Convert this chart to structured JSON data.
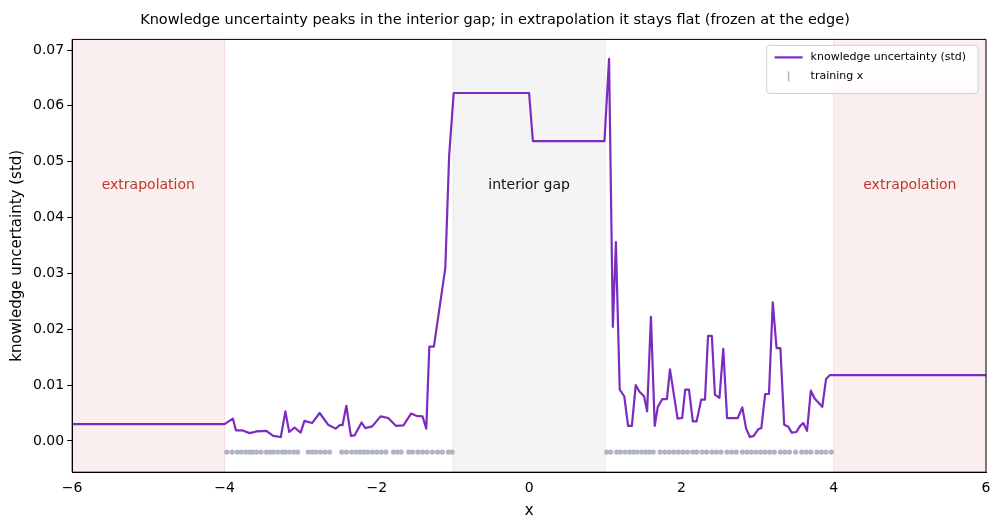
{
  "chart_data": {
    "type": "line",
    "title": "Knowledge uncertainty peaks in the interior gap; in extrapolation it stays flat (frozen at the edge)",
    "xlabel": "x",
    "ylabel": "knowledge uncertainty (std)",
    "xlim": [
      -6,
      6
    ],
    "xticks": [
      {
        "value": -6,
        "label": "−6"
      },
      {
        "value": -4,
        "label": "−4"
      },
      {
        "value": -2,
        "label": "−2"
      },
      0,
      2,
      4,
      6
    ],
    "ylim": [
      -0.0056,
      0.0719
    ],
    "yticks": [
      {
        "value": 0,
        "label": "0.00"
      },
      {
        "value": 0.01,
        "label": "0.01"
      },
      {
        "value": 0.02,
        "label": "0.02"
      },
      {
        "value": 0.03,
        "label": "0.03"
      },
      {
        "value": 0.04,
        "label": "0.04"
      },
      {
        "value": 0.05,
        "label": "0.05"
      },
      {
        "value": 0.06,
        "label": "0.06"
      },
      {
        "value": 0.07,
        "label": "0.07"
      }
    ],
    "grid": false,
    "legend": "top right",
    "bands": [
      {
        "axis": "x",
        "from": -6,
        "to": -4,
        "label": "extrapolation",
        "color": "#c0392b"
      },
      {
        "axis": "x",
        "from": -1,
        "to": 1,
        "label": "interior gap",
        "color": "#777777"
      },
      {
        "axis": "x",
        "from": 4,
        "to": 6,
        "label": "extrapolation",
        "color": "#c0392b"
      }
    ],
    "series": [
      {
        "name": "knowledge uncertainty (std)",
        "color": "#7b2cbf",
        "marker": "none",
        "line_style": "solid",
        "x": [
          -6,
          -4,
          -3.89,
          -3.85,
          -3.77,
          -3.67,
          -3.58,
          -3.45,
          -3.36,
          -3.26,
          -3.2,
          -3.15,
          -3.08,
          -3.0,
          -2.95,
          -2.85,
          -2.75,
          -2.64,
          -2.54,
          -2.48,
          -2.45,
          -2.4,
          -2.34,
          -2.29,
          -2.2,
          -2.15,
          -2.06,
          -1.95,
          -1.85,
          -1.75,
          -1.65,
          -1.55,
          -1.48,
          -1.4,
          -1.35,
          -1.31,
          -1.25,
          -1.1,
          -1.05,
          -0.99,
          0,
          0.05,
          0.99,
          1.05,
          1.1,
          1.14,
          1.19,
          1.25,
          1.3,
          1.35,
          1.4,
          1.45,
          1.51,
          1.55,
          1.6,
          1.65,
          1.69,
          1.75,
          1.81,
          1.85,
          1.95,
          2.01,
          2.05,
          2.1,
          2.15,
          2.2,
          2.26,
          2.31,
          2.35,
          2.4,
          2.44,
          2.5,
          2.55,
          2.6,
          2.74,
          2.8,
          2.85,
          2.9,
          2.95,
          3.01,
          3.05,
          3.1,
          3.15,
          3.2,
          3.25,
          3.3,
          3.35,
          3.4,
          3.45,
          3.51,
          3.56,
          3.6,
          3.65,
          3.7,
          3.75,
          3.85,
          3.9,
          3.95,
          6
        ],
        "values": [
          0.003,
          0.003,
          0.004,
          0.0019,
          0.0019,
          0.0014,
          0.0017,
          0.0018,
          0.0009,
          0.0007,
          0.0053,
          0.0016,
          0.0024,
          0.0015,
          0.0036,
          0.0032,
          0.005,
          0.0029,
          0.0022,
          0.0029,
          0.0028,
          0.0063,
          0.0009,
          0.001,
          0.0033,
          0.0023,
          0.0026,
          0.0044,
          0.0041,
          0.0027,
          0.0028,
          0.0049,
          0.0045,
          0.0044,
          0.0022,
          0.0169,
          0.0169,
          0.031,
          0.051,
          0.0623,
          0.0623,
          0.0537,
          0.0537,
          0.0684,
          0.0204,
          0.0356,
          0.0092,
          0.008,
          0.0027,
          0.0027,
          0.01,
          0.0088,
          0.008,
          0.0053,
          0.0222,
          0.0027,
          0.0061,
          0.0075,
          0.0075,
          0.0128,
          0.004,
          0.0041,
          0.0092,
          0.0092,
          0.0035,
          0.0035,
          0.0074,
          0.0074,
          0.0188,
          0.0188,
          0.0083,
          0.0077,
          0.0165,
          0.0041,
          0.0041,
          0.006,
          0.0022,
          0.0007,
          0.0009,
          0.0021,
          0.0023,
          0.0084,
          0.0084,
          0.0248,
          0.0166,
          0.0166,
          0.0029,
          0.0026,
          0.0015,
          0.0016,
          0.0027,
          0.0032,
          0.0018,
          0.009,
          0.0076,
          0.0061,
          0.0111,
          0.0118,
          0.0118
        ]
      },
      {
        "name": "training x",
        "type": "scatter",
        "color": "#aeb5c1",
        "marker": "circle",
        "x": [
          -3.97,
          -3.9,
          -3.83,
          -3.78,
          -3.72,
          -3.67,
          -3.63,
          -3.58,
          -3.52,
          -3.45,
          -3.4,
          -3.36,
          -3.3,
          -3.24,
          -3.2,
          -3.15,
          -3.09,
          -3.04,
          -2.9,
          -2.85,
          -2.8,
          -2.74,
          -2.68,
          -2.62,
          -2.46,
          -2.4,
          -2.33,
          -2.27,
          -2.22,
          -2.17,
          -2.12,
          -2.06,
          -2.0,
          -1.94,
          -1.88,
          -1.78,
          -1.73,
          -1.68,
          -1.58,
          -1.53,
          -1.46,
          -1.4,
          -1.34,
          -1.27,
          -1.2,
          -1.14,
          -1.06,
          -1.01,
          1.02,
          1.07,
          1.15,
          1.2,
          1.26,
          1.32,
          1.37,
          1.42,
          1.48,
          1.53,
          1.58,
          1.63,
          1.72,
          1.78,
          1.84,
          1.9,
          1.96,
          2.02,
          2.08,
          2.15,
          2.2,
          2.27,
          2.33,
          2.4,
          2.46,
          2.52,
          2.6,
          2.66,
          2.72,
          2.8,
          2.86,
          2.92,
          2.98,
          3.04,
          3.1,
          3.16,
          3.22,
          3.3,
          3.36,
          3.42,
          3.5,
          3.58,
          3.64,
          3.7,
          3.78,
          3.84,
          3.9,
          3.97
        ],
        "values": [
          -0.002,
          -0.002,
          -0.002,
          -0.002,
          -0.002,
          -0.002,
          -0.002,
          -0.002,
          -0.002,
          -0.002,
          -0.002,
          -0.002,
          -0.002,
          -0.002,
          -0.002,
          -0.002,
          -0.002,
          -0.002,
          -0.002,
          -0.002,
          -0.002,
          -0.002,
          -0.002,
          -0.002,
          -0.002,
          -0.002,
          -0.002,
          -0.002,
          -0.002,
          -0.002,
          -0.002,
          -0.002,
          -0.002,
          -0.002,
          -0.002,
          -0.002,
          -0.002,
          -0.002,
          -0.002,
          -0.002,
          -0.002,
          -0.002,
          -0.002,
          -0.002,
          -0.002,
          -0.002,
          -0.002,
          -0.002,
          -0.002,
          -0.002,
          -0.002,
          -0.002,
          -0.002,
          -0.002,
          -0.002,
          -0.002,
          -0.002,
          -0.002,
          -0.002,
          -0.002,
          -0.002,
          -0.002,
          -0.002,
          -0.002,
          -0.002,
          -0.002,
          -0.002,
          -0.002,
          -0.002,
          -0.002,
          -0.002,
          -0.002,
          -0.002,
          -0.002,
          -0.002,
          -0.002,
          -0.002,
          -0.002,
          -0.002,
          -0.002,
          -0.002,
          -0.002,
          -0.002,
          -0.002,
          -0.002,
          -0.002,
          -0.002,
          -0.002,
          -0.002,
          -0.002,
          -0.002,
          -0.002,
          -0.002,
          -0.002,
          -0.002,
          -0.002
        ]
      }
    ]
  }
}
